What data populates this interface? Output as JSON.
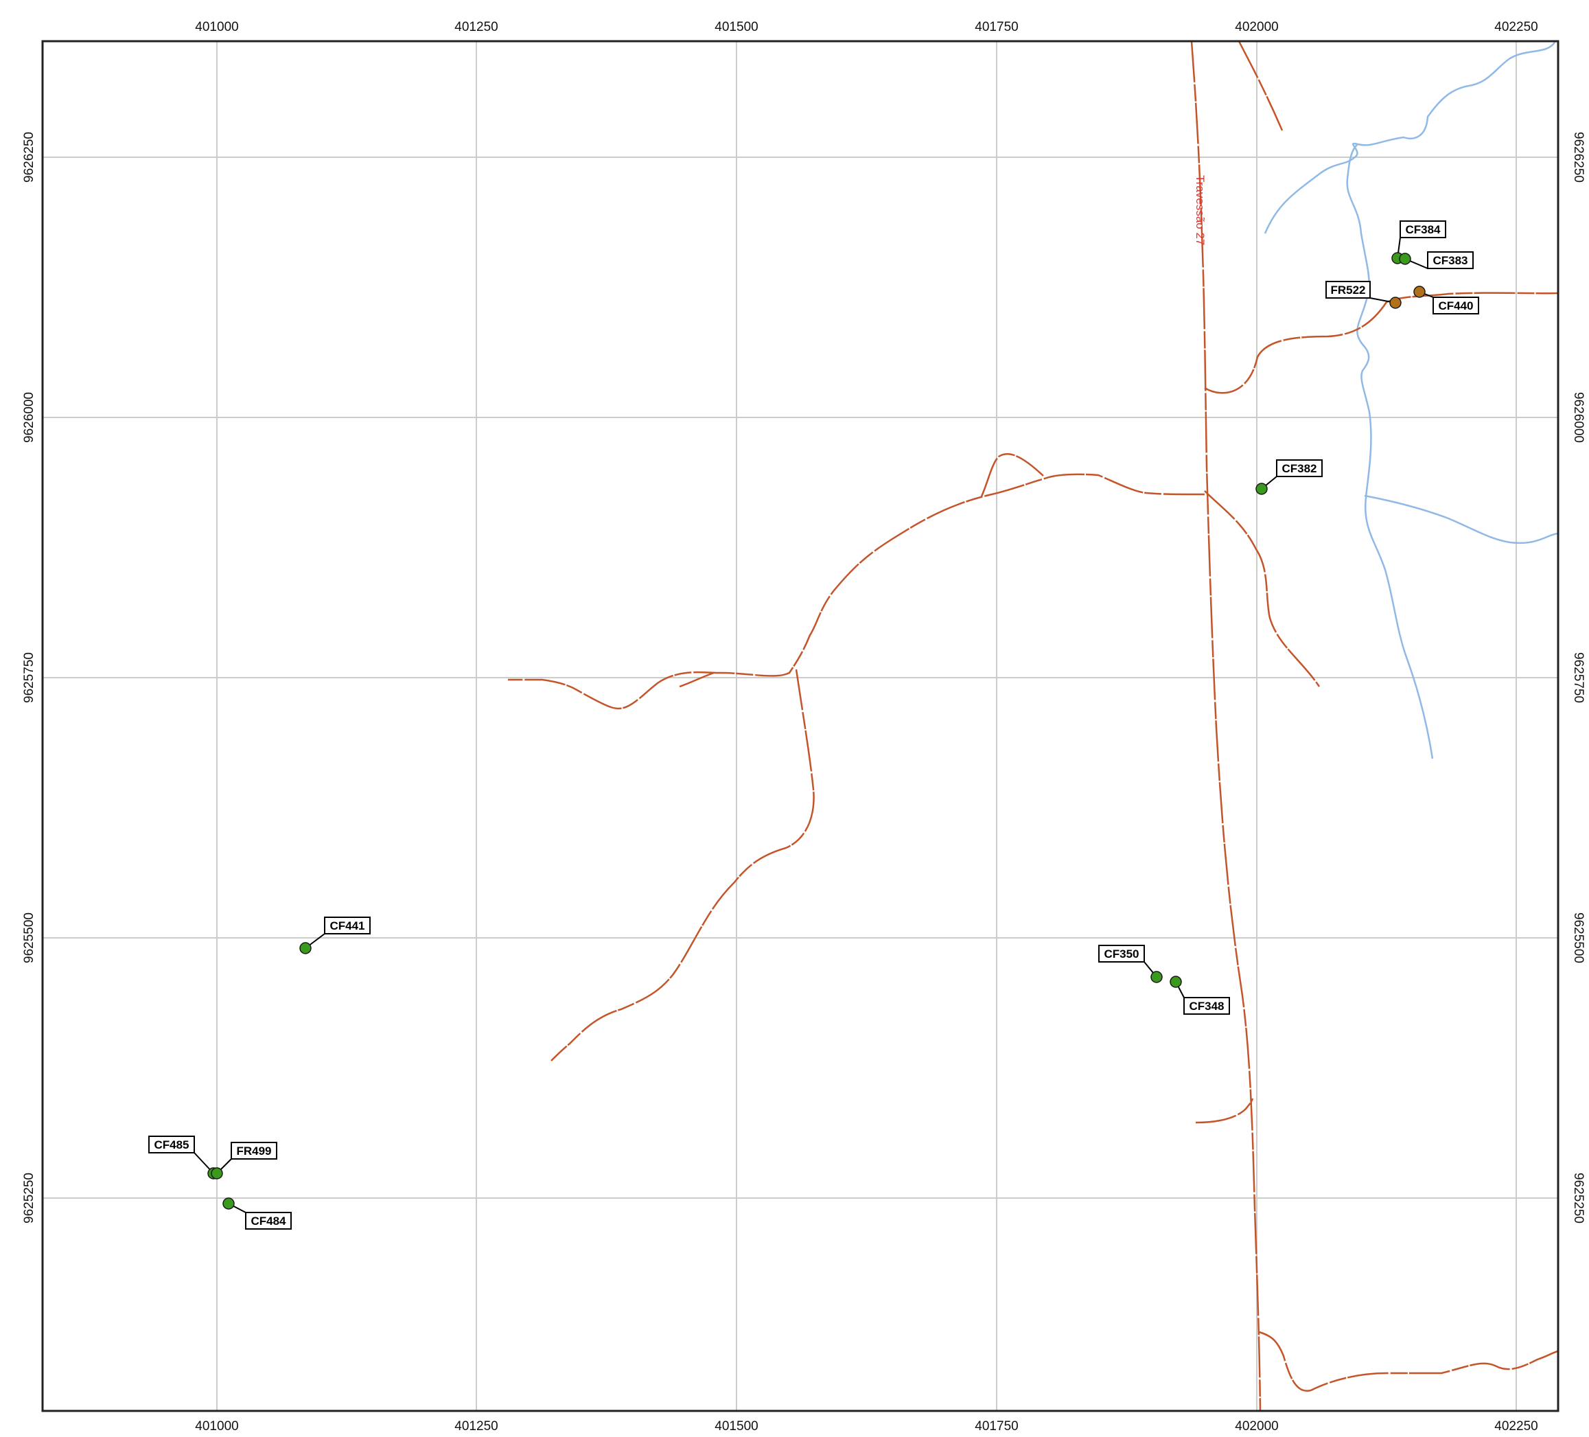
{
  "map": {
    "colors": {
      "frame": "#222222",
      "grid": "#cccccc",
      "road": "#c4552b",
      "river": "#8fb9e6",
      "road_label": "#e8332d",
      "point_cf": "#3a9a1c",
      "point_fr": "#b3701a",
      "label_border": "#000000"
    },
    "x_ticks": [
      "401000",
      "401250",
      "401500",
      "401750",
      "402000",
      "402250"
    ],
    "y_ticks": [
      "9626250",
      "9626000",
      "9625750",
      "9625500",
      "9625250"
    ],
    "road_label": "Travessão 27",
    "points": [
      {
        "id": "CF384",
        "type": "CF"
      },
      {
        "id": "CF383",
        "type": "CF"
      },
      {
        "id": "FR522",
        "type": "FR"
      },
      {
        "id": "CF440",
        "type": "FR"
      },
      {
        "id": "CF382",
        "type": "CF"
      },
      {
        "id": "CF441",
        "type": "CF"
      },
      {
        "id": "CF350",
        "type": "CF"
      },
      {
        "id": "CF348",
        "type": "CF"
      },
      {
        "id": "CF485",
        "type": "CF"
      },
      {
        "id": "FR499",
        "type": "CF"
      },
      {
        "id": "CF484",
        "type": "CF"
      }
    ]
  }
}
